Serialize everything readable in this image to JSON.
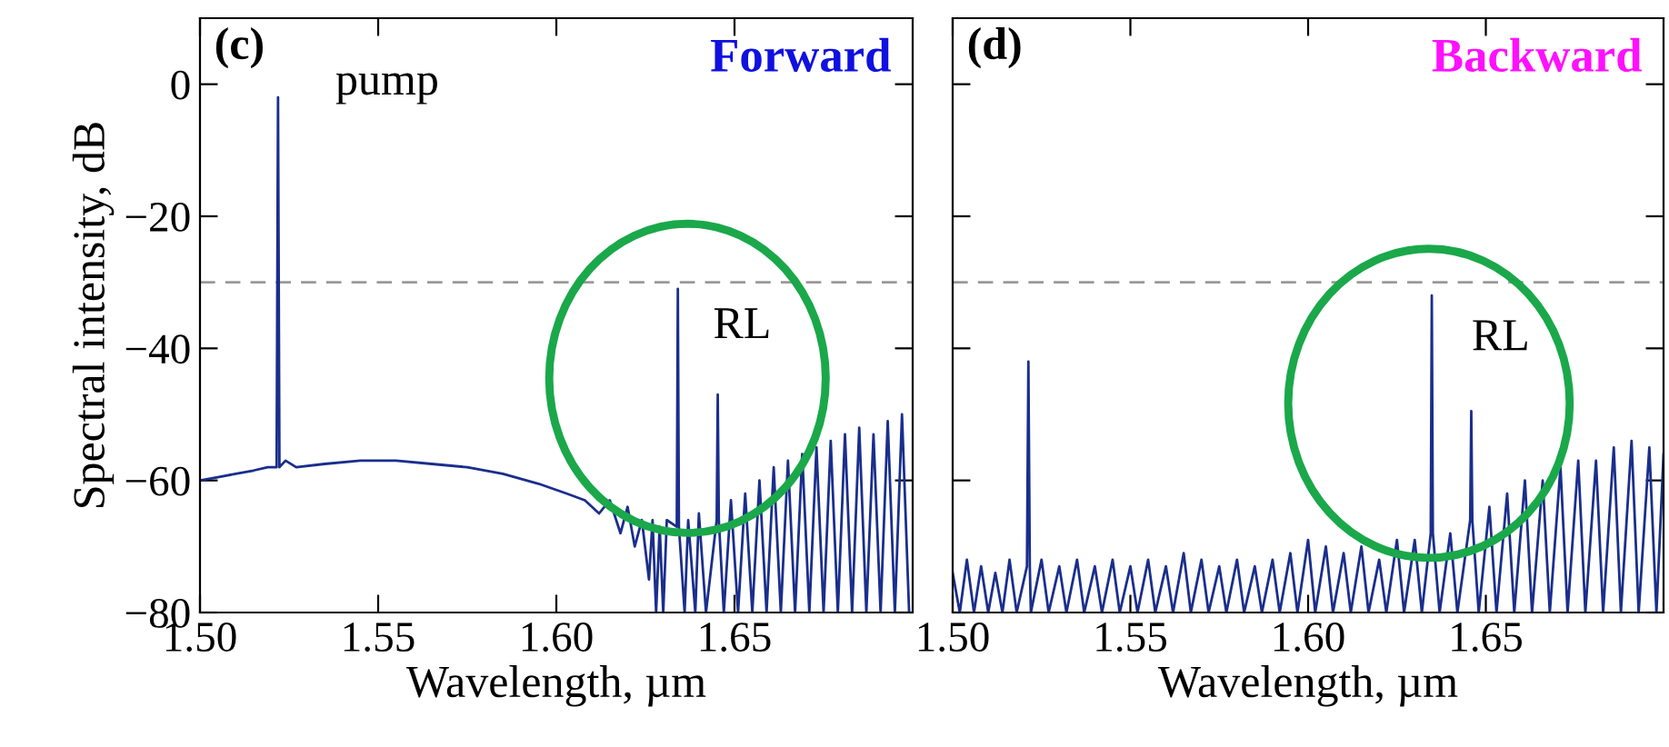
{
  "chart_data": [
    {
      "type": "line",
      "title": "Forward",
      "xlabel": "Wavelength, µm",
      "ylabel": "Spectral intensity, dB",
      "xlim": [
        1.5,
        1.7
      ],
      "ylim": [
        -80,
        10
      ],
      "xticks": [
        {
          "value": 1.5,
          "label": "1.50"
        },
        {
          "value": 1.55,
          "label": "1.55"
        },
        {
          "value": 1.6,
          "label": "1.60"
        },
        {
          "value": 1.65,
          "label": "1.65"
        }
      ],
      "yticks": [
        {
          "value": -80,
          "label": "−80"
        },
        {
          "value": -60,
          "label": "−60"
        },
        {
          "value": -40,
          "label": "−40"
        },
        {
          "value": -20,
          "label": "−20"
        },
        {
          "value": 0,
          "label": "0"
        }
      ],
      "grid": false,
      "legend": false,
      "annotations": [
        "(c)",
        "pump",
        "RL"
      ],
      "ref_lines": [
        {
          "axis": "y",
          "value": -30,
          "color": "#999999",
          "line_style": "dashed"
        }
      ],
      "series": [
        {
          "color": "#1a2e8c",
          "x": [
            1.5,
            1.505,
            1.51,
            1.515,
            1.519,
            1.5215,
            1.5219,
            1.5223,
            1.524,
            1.527,
            1.535,
            1.545,
            1.555,
            1.565,
            1.575,
            1.585,
            1.595,
            1.603,
            1.608,
            1.612,
            1.615,
            1.618,
            1.62,
            1.622,
            1.624,
            1.626,
            1.627,
            1.628,
            1.629,
            1.63,
            1.631,
            1.6338,
            1.6341,
            1.6344,
            1.636,
            1.637,
            1.639,
            1.64,
            1.642,
            1.645,
            1.6453,
            1.6456,
            1.647,
            1.649,
            1.651,
            1.653,
            1.655,
            1.657,
            1.659,
            1.661,
            1.663,
            1.665,
            1.667,
            1.669,
            1.671,
            1.673,
            1.675,
            1.677,
            1.679,
            1.681,
            1.683,
            1.685,
            1.687,
            1.689,
            1.691,
            1.693,
            1.695,
            1.697,
            1.699
          ],
          "values": [
            -60,
            -59.5,
            -59,
            -58.5,
            -58,
            -58,
            -2,
            -58,
            -57,
            -58,
            -57.5,
            -57,
            -57,
            -57.5,
            -58,
            -59,
            -60.5,
            -62,
            -63,
            -65,
            -63,
            -68,
            -64,
            -70,
            -66,
            -75,
            -66,
            -80,
            -67,
            -80,
            -66,
            -67,
            -31,
            -67,
            -80,
            -66,
            -80,
            -65,
            -80,
            -66,
            -47,
            -66,
            -80,
            -63,
            -80,
            -62,
            -80,
            -60,
            -80,
            -58,
            -80,
            -57,
            -80,
            -56,
            -80,
            -55,
            -80,
            -54,
            -80,
            -53,
            -80,
            -52,
            -80,
            -53,
            -80,
            -51,
            -80,
            -50,
            -80
          ]
        }
      ]
    },
    {
      "type": "line",
      "title": "Backward",
      "xlabel": "Wavelength, µm",
      "xlim": [
        1.5,
        1.7
      ],
      "ylim": [
        -80,
        10
      ],
      "xticks": [
        {
          "value": 1.5,
          "label": "1.50"
        },
        {
          "value": 1.55,
          "label": "1.55"
        },
        {
          "value": 1.6,
          "label": "1.60"
        },
        {
          "value": 1.65,
          "label": "1.65"
        }
      ],
      "yticks": [
        {
          "value": -80,
          "label": null
        },
        {
          "value": -60,
          "label": null
        },
        {
          "value": -40,
          "label": null
        },
        {
          "value": -20,
          "label": null
        },
        {
          "value": 0,
          "label": null
        }
      ],
      "tick_labels": "x",
      "grid": false,
      "legend": false,
      "annotations": [
        "(d)",
        "RL"
      ],
      "ref_lines": [
        {
          "axis": "y",
          "value": -30,
          "color": "#999999",
          "line_style": "dashed"
        }
      ],
      "series": [
        {
          "color": "#1a2e8c",
          "x": [
            1.5,
            1.502,
            1.504,
            1.506,
            1.508,
            1.51,
            1.512,
            1.514,
            1.516,
            1.518,
            1.5209,
            1.5213,
            1.5217,
            1.522,
            1.525,
            1.527,
            1.53,
            1.532,
            1.535,
            1.537,
            1.54,
            1.542,
            1.545,
            1.547,
            1.55,
            1.552,
            1.555,
            1.557,
            1.56,
            1.562,
            1.565,
            1.567,
            1.57,
            1.572,
            1.575,
            1.577,
            1.58,
            1.582,
            1.585,
            1.587,
            1.59,
            1.592,
            1.595,
            1.597,
            1.6,
            1.602,
            1.605,
            1.607,
            1.61,
            1.612,
            1.615,
            1.617,
            1.62,
            1.622,
            1.625,
            1.627,
            1.63,
            1.632,
            1.6345,
            1.6348,
            1.6351,
            1.637,
            1.64,
            1.642,
            1.6456,
            1.6459,
            1.6462,
            1.648,
            1.651,
            1.653,
            1.656,
            1.658,
            1.661,
            1.663,
            1.666,
            1.668,
            1.671,
            1.673,
            1.676,
            1.678,
            1.681,
            1.683,
            1.686,
            1.688,
            1.691,
            1.693,
            1.696,
            1.698,
            1.7
          ],
          "values": [
            -74,
            -80,
            -72,
            -80,
            -73,
            -80,
            -74,
            -80,
            -72,
            -80,
            -73,
            -42,
            -73,
            -80,
            -72,
            -80,
            -73,
            -80,
            -72,
            -80,
            -73,
            -80,
            -72,
            -80,
            -73,
            -80,
            -72,
            -80,
            -73,
            -80,
            -71,
            -80,
            -72,
            -80,
            -73,
            -80,
            -72,
            -80,
            -73,
            -80,
            -72,
            -80,
            -71,
            -80,
            -69,
            -80,
            -70,
            -80,
            -71,
            -80,
            -70,
            -80,
            -72,
            -80,
            -69,
            -80,
            -69,
            -80,
            -68,
            -32,
            -68,
            -80,
            -68,
            -80,
            -66,
            -49.5,
            -66,
            -80,
            -64,
            -80,
            -62,
            -80,
            -60,
            -80,
            -60,
            -80,
            -58,
            -80,
            -57,
            -80,
            -57,
            -80,
            -55,
            -80,
            -54,
            -80,
            -55,
            -80,
            -56
          ]
        }
      ]
    }
  ]
}
